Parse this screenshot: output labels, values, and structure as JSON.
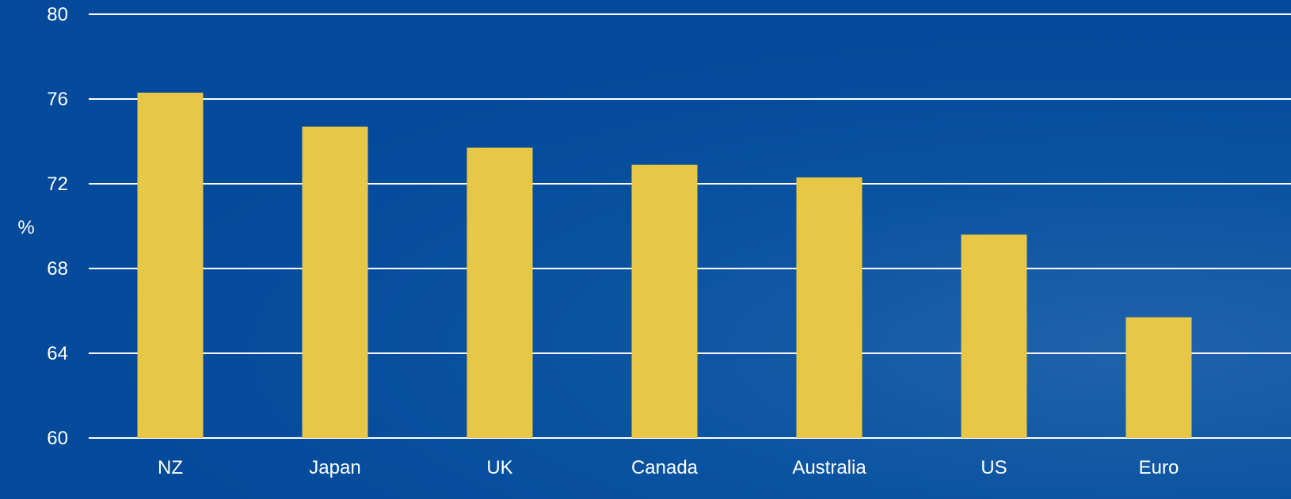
{
  "chart_data": {
    "type": "bar",
    "title": "",
    "xlabel": "",
    "ylabel": "%",
    "categories": [
      "NZ",
      "Japan",
      "UK",
      "Canada",
      "Australia",
      "US",
      "Euro"
    ],
    "values": [
      76.3,
      74.7,
      73.7,
      72.9,
      72.3,
      69.6,
      65.7
    ],
    "ylim": [
      60,
      80
    ],
    "yticks": [
      60,
      64,
      68,
      72,
      76,
      80
    ],
    "grid": true,
    "legend": "none",
    "colors": {
      "bar": "#e9c746",
      "gridline": "#ffffff",
      "text": "#ffffff",
      "background": "#034a9a"
    }
  }
}
